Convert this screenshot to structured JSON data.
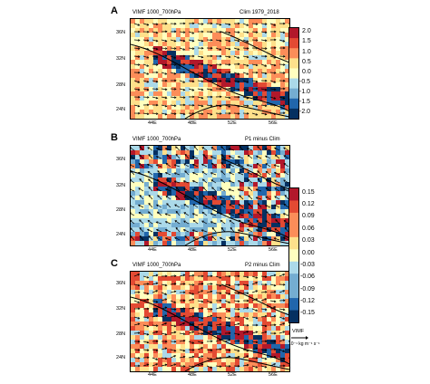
{
  "panels": [
    {
      "letter": "A",
      "left_title": "VIMF 1000_700hPa",
      "right_title": "Clim 1979_2018",
      "lat_ticks": [
        "36N",
        "32N",
        "28N",
        "24N"
      ],
      "lon_ticks": [
        "44E",
        "48E",
        "52E",
        "56E"
      ]
    },
    {
      "letter": "B",
      "left_title": "VIMF 1000_700hPa",
      "right_title": "P1 minus Clim",
      "lat_ticks": [
        "36N",
        "32N",
        "28N",
        "24N"
      ],
      "lon_ticks": [
        "44E",
        "48E",
        "52E",
        "56E"
      ]
    },
    {
      "letter": "C",
      "left_title": "VIMF 1000_700hPa",
      "right_title": "P2 minus Clim",
      "lat_ticks": [
        "36N",
        "32N",
        "28N",
        "24N"
      ],
      "lon_ticks": [
        "44E",
        "48E",
        "52E",
        "56E"
      ]
    }
  ],
  "colorbar_a": {
    "labels": [
      "2.0",
      "1.5",
      "1.0",
      "0.5",
      "0.0",
      "-0.5",
      "-1.0",
      "-1.5",
      "-2.0"
    ]
  },
  "colorbar_bc": {
    "labels": [
      "0.15",
      "0.12",
      "0.09",
      "0.06",
      "0.03",
      "0.00",
      "-0.03",
      "-0.06",
      "-0.09",
      "-0.12",
      "-0.15"
    ]
  },
  "vector_ref": {
    "title": "VIMF",
    "unit": "10⁻¹ kg m⁻¹ s⁻¹"
  },
  "colors": {
    "dark_red": "#b2182b",
    "red": "#e34a33",
    "orange": "#fc8d59",
    "yellow": "#fee08b",
    "light_yellow": "#ffffbf",
    "cyan": "#abd9e9",
    "light_blue": "#74add1",
    "blue": "#2166ac",
    "dark_blue": "#053061"
  }
}
